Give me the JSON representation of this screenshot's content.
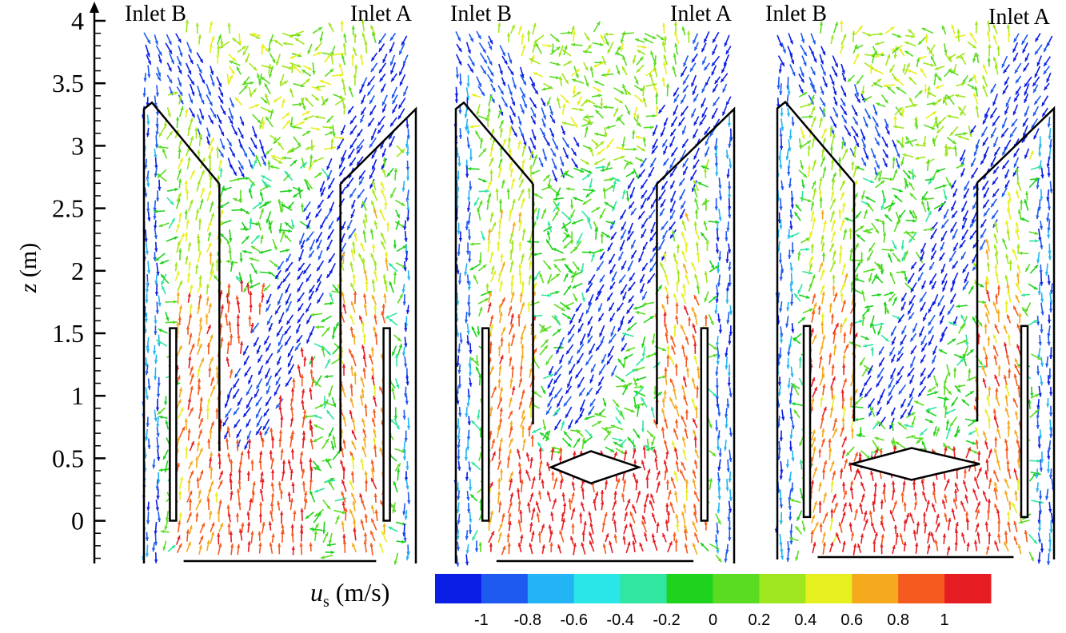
{
  "figure": {
    "y_axis": {
      "label_var": "z",
      "label_unit": " (m)",
      "ticks": [
        "4",
        "3.5",
        "3",
        "2.5",
        "2",
        "1.5",
        "1",
        "0.5",
        "0"
      ]
    },
    "panels": [
      {
        "inlet_left": "Inlet B",
        "inlet_right": "Inlet A"
      },
      {
        "inlet_left": "Inlet B",
        "inlet_right": "Inlet A"
      },
      {
        "inlet_left": "Inlet B",
        "inlet_right": "Inlet A"
      }
    ],
    "colorbar": {
      "label_var": "u",
      "label_sub": "s",
      "label_unit": " (m/s)",
      "ticks": [
        "-1",
        "-0.8",
        "-0.6",
        "-0.4",
        "-0.2",
        "0",
        "0.2",
        "0.4",
        "0.6",
        "0.8",
        "1"
      ],
      "colors": [
        "#0a1ee6",
        "#1e5af0",
        "#23b4f5",
        "#2ae6e6",
        "#30e6a0",
        "#1ed21e",
        "#5adc23",
        "#a0e61e",
        "#e6f01e",
        "#f5aa1e",
        "#f55a1e",
        "#e61e23"
      ]
    }
  }
}
